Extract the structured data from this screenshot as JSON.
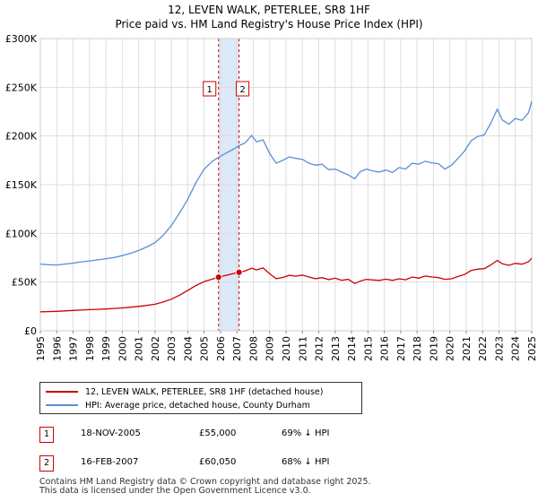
{
  "chart_data": {
    "type": "line",
    "title": "12, LEVEN WALK, PETERLEE, SR8 1HF",
    "subtitle": "Price paid vs. HM Land Registry's House Price Index (HPI)",
    "xlabel": "",
    "ylabel": "",
    "xlim": [
      1995,
      2025
    ],
    "ylim": [
      0,
      300000
    ],
    "yticks": [
      {
        "value": 0,
        "label": "£0"
      },
      {
        "value": 50000,
        "label": "£50K"
      },
      {
        "value": 100000,
        "label": "£100K"
      },
      {
        "value": 150000,
        "label": "£150K"
      },
      {
        "value": 200000,
        "label": "£200K"
      },
      {
        "value": 250000,
        "label": "£250K"
      },
      {
        "value": 300000,
        "label": "£300K"
      }
    ],
    "xticks": [
      "1995",
      "1996",
      "1997",
      "1998",
      "1999",
      "2000",
      "2001",
      "2002",
      "2003",
      "2004",
      "2005",
      "2006",
      "2007",
      "2008",
      "2009",
      "2010",
      "2011",
      "2012",
      "2013",
      "2014",
      "2015",
      "2016",
      "2017",
      "2018",
      "2019",
      "2020",
      "2021",
      "2022",
      "2023",
      "2024",
      "2025"
    ],
    "grid": true,
    "series": [
      {
        "name": "12, LEVEN WALK, PETERLEE, SR8 1HF (detached house)",
        "color": "#cc0000",
        "points": [
          [
            1995.0,
            19500
          ],
          [
            1995.5,
            19700
          ],
          [
            1996.0,
            20000
          ],
          [
            1996.5,
            20400
          ],
          [
            1997.0,
            20900
          ],
          [
            1997.5,
            21300
          ],
          [
            1998.0,
            21700
          ],
          [
            1998.5,
            22000
          ],
          [
            1999.0,
            22400
          ],
          [
            1999.5,
            22900
          ],
          [
            2000.0,
            23500
          ],
          [
            2000.5,
            24200
          ],
          [
            2001.0,
            25000
          ],
          [
            2001.5,
            26000
          ],
          [
            2002.0,
            27200
          ],
          [
            2002.5,
            29500
          ],
          [
            2003.0,
            32500
          ],
          [
            2003.5,
            36500
          ],
          [
            2004.0,
            41500
          ],
          [
            2004.5,
            46500
          ],
          [
            2005.0,
            50500
          ],
          [
            2005.5,
            53000
          ],
          [
            2005.88,
            55000
          ],
          [
            2006.3,
            56800
          ],
          [
            2006.8,
            58800
          ],
          [
            2007.13,
            60050
          ],
          [
            2007.5,
            61500
          ],
          [
            2007.9,
            64200
          ],
          [
            2008.2,
            62500
          ],
          [
            2008.6,
            64500
          ],
          [
            2009.0,
            58500
          ],
          [
            2009.4,
            53500
          ],
          [
            2009.8,
            54800
          ],
          [
            2010.2,
            57000
          ],
          [
            2010.6,
            56000
          ],
          [
            2011.0,
            57200
          ],
          [
            2011.4,
            55200
          ],
          [
            2011.8,
            53500
          ],
          [
            2012.2,
            54600
          ],
          [
            2012.6,
            52500
          ],
          [
            2013.0,
            54000
          ],
          [
            2013.4,
            51800
          ],
          [
            2013.8,
            52800
          ],
          [
            2014.2,
            48500
          ],
          [
            2014.5,
            50800
          ],
          [
            2014.9,
            52800
          ],
          [
            2015.3,
            52200
          ],
          [
            2015.7,
            51700
          ],
          [
            2016.1,
            53000
          ],
          [
            2016.5,
            51700
          ],
          [
            2016.9,
            53400
          ],
          [
            2017.3,
            52400
          ],
          [
            2017.7,
            55200
          ],
          [
            2018.1,
            54000
          ],
          [
            2018.5,
            56200
          ],
          [
            2018.9,
            55200
          ],
          [
            2019.3,
            54600
          ],
          [
            2019.7,
            52800
          ],
          [
            2020.1,
            53400
          ],
          [
            2020.5,
            55800
          ],
          [
            2020.9,
            57800
          ],
          [
            2021.3,
            61800
          ],
          [
            2021.7,
            63200
          ],
          [
            2022.1,
            63800
          ],
          [
            2022.5,
            67500
          ],
          [
            2022.9,
            72200
          ],
          [
            2023.2,
            68800
          ],
          [
            2023.6,
            67200
          ],
          [
            2024.0,
            69200
          ],
          [
            2024.4,
            68400
          ],
          [
            2024.8,
            70800
          ],
          [
            2025.0,
            74500
          ]
        ]
      },
      {
        "name": "HPI: Average price, detached house, County Durham",
        "color": "#5b8ed6",
        "points": [
          [
            1995.0,
            68500
          ],
          [
            1995.5,
            67800
          ],
          [
            1996.0,
            67500
          ],
          [
            1996.5,
            68500
          ],
          [
            1997.0,
            69500
          ],
          [
            1997.5,
            70800
          ],
          [
            1998.0,
            71700
          ],
          [
            1998.5,
            72800
          ],
          [
            1999.0,
            74000
          ],
          [
            1999.5,
            75200
          ],
          [
            2000.0,
            77200
          ],
          [
            2000.5,
            79500
          ],
          [
            2001.0,
            82500
          ],
          [
            2001.5,
            86000
          ],
          [
            2002.0,
            90500
          ],
          [
            2002.5,
            98000
          ],
          [
            2003.0,
            108000
          ],
          [
            2003.5,
            121000
          ],
          [
            2004.0,
            135000
          ],
          [
            2004.5,
            152000
          ],
          [
            2005.0,
            166000
          ],
          [
            2005.5,
            174000
          ],
          [
            2005.88,
            178000
          ],
          [
            2006.3,
            182000
          ],
          [
            2006.8,
            186500
          ],
          [
            2007.13,
            190000
          ],
          [
            2007.5,
            193000
          ],
          [
            2007.9,
            200500
          ],
          [
            2008.2,
            194000
          ],
          [
            2008.6,
            196000
          ],
          [
            2009.0,
            182000
          ],
          [
            2009.4,
            172000
          ],
          [
            2009.8,
            175000
          ],
          [
            2010.2,
            178500
          ],
          [
            2010.6,
            177000
          ],
          [
            2011.0,
            176000
          ],
          [
            2011.4,
            172000
          ],
          [
            2011.8,
            170000
          ],
          [
            2012.2,
            171000
          ],
          [
            2012.6,
            165500
          ],
          [
            2013.0,
            166000
          ],
          [
            2013.4,
            163000
          ],
          [
            2013.8,
            160000
          ],
          [
            2014.2,
            156000
          ],
          [
            2014.5,
            163000
          ],
          [
            2014.9,
            166000
          ],
          [
            2015.3,
            164000
          ],
          [
            2015.7,
            163000
          ],
          [
            2016.1,
            165000
          ],
          [
            2016.5,
            162500
          ],
          [
            2016.9,
            167500
          ],
          [
            2017.3,
            166000
          ],
          [
            2017.7,
            172000
          ],
          [
            2018.1,
            171000
          ],
          [
            2018.5,
            174000
          ],
          [
            2018.9,
            172500
          ],
          [
            2019.3,
            171500
          ],
          [
            2019.7,
            166000
          ],
          [
            2020.1,
            170000
          ],
          [
            2020.5,
            177000
          ],
          [
            2020.9,
            184500
          ],
          [
            2021.3,
            195000
          ],
          [
            2021.7,
            199500
          ],
          [
            2022.1,
            201000
          ],
          [
            2022.5,
            213000
          ],
          [
            2022.9,
            227500
          ],
          [
            2023.2,
            216500
          ],
          [
            2023.6,
            212000
          ],
          [
            2024.0,
            218000
          ],
          [
            2024.4,
            216000
          ],
          [
            2024.8,
            223500
          ],
          [
            2025.0,
            235500
          ]
        ]
      }
    ],
    "transactions": [
      {
        "id": "1",
        "x": 2005.88,
        "value": 55000
      },
      {
        "id": "2",
        "x": 2007.13,
        "value": 60050
      }
    ],
    "highlight_span": [
      2005.88,
      2007.13
    ],
    "legend": {
      "placement": "below"
    }
  },
  "table": {
    "rows": [
      {
        "num": "1",
        "date": "18-NOV-2005",
        "price": "£55,000",
        "hpi": "69% ↓ HPI"
      },
      {
        "num": "2",
        "date": "16-FEB-2007",
        "price": "£60,050",
        "hpi": "68% ↓ HPI"
      }
    ]
  },
  "footer": {
    "line1": "Contains HM Land Registry data © Crown copyright and database right 2025.",
    "line2": "This data is licensed under the Open Government Licence v3.0."
  }
}
